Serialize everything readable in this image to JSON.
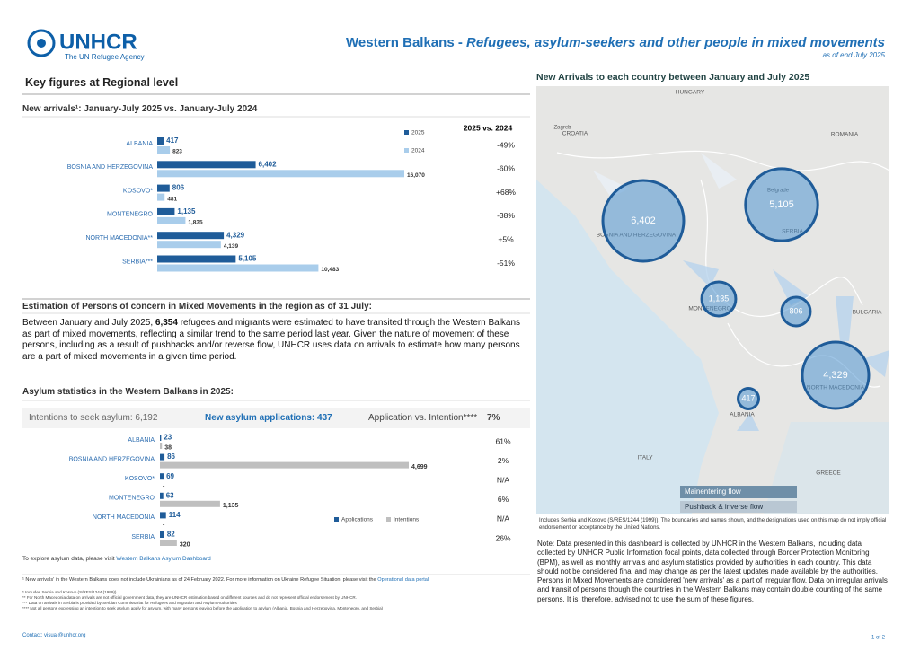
{
  "header": {
    "logo": "UNHCR",
    "tagline": "The UN Refugee Agency",
    "title_main": "Western Balkans - ",
    "title_sub": "Refugees, asylum-seekers and other people in mixed movements",
    "date": "as of end July 2025"
  },
  "key_figures": {
    "title": "Key figures at Regional level"
  },
  "chart_data": [
    {
      "type": "bar",
      "orientation": "horizontal",
      "title": "New arrivals¹: January-July 2025 vs. January-July 2024",
      "categories": [
        "ALBANIA",
        "BOSNIA AND HERZEGOVINA",
        "KOSOVO*",
        "MONTENEGRO",
        "NORTH MACEDONIA**",
        "SERBIA***"
      ],
      "series": [
        {
          "name": "2025",
          "color": "#1f5c99",
          "values": [
            417,
            6402,
            806,
            1135,
            4329,
            5105
          ],
          "value_labels": [
            "417",
            "6,402",
            "806",
            "1,135",
            "4,329",
            "5,105"
          ]
        },
        {
          "name": "2024",
          "color": "#a9cdeb",
          "values": [
            823,
            16070,
            481,
            1835,
            4139,
            10483
          ],
          "value_labels": [
            "823",
            "16,070",
            "481",
            "1,835",
            "4,139",
            "10,483"
          ]
        }
      ],
      "comparison_title": "2025 vs. 2024",
      "comparison_labels": [
        "-49%",
        "-60%",
        "+68%",
        "-38%",
        "+5%",
        "-51%"
      ]
    },
    {
      "type": "bar",
      "orientation": "horizontal",
      "title": "Asylum statistics in the Western Balkans in 2025:",
      "categories": [
        "ALBANIA",
        "BOSNIA AND HERZEGOVINA",
        "KOSOVO*",
        "MONTENEGRO",
        "NORTH MACEDONIA",
        "SERBIA"
      ],
      "series": [
        {
          "name": "Applications",
          "color": "#1f5c99",
          "values": [
            23,
            86,
            69,
            63,
            114,
            82
          ]
        },
        {
          "name": "Intentions",
          "color": "#bfbfbf",
          "values": [
            38,
            4699,
            null,
            1135,
            null,
            320
          ],
          "value_labels": [
            "38",
            "4,699",
            "-",
            "1,135",
            "-",
            "320"
          ]
        }
      ],
      "comparison_labels": [
        "61%",
        "2%",
        "N/A",
        "6%",
        "N/A",
        "26%"
      ]
    }
  ],
  "mixed": {
    "title": "Estimation of Persons of concern in Mixed Movements in the region as of 31 July:",
    "before": "Between January and July 2025, ",
    "highlight": "6,354",
    "after": " refugees and migrants were estimated to have transited through the Western Balkans as part of mixed movements, reflecting a similar trend to the same period last year. Given the nature of movement of these persons, including as a result of pushbacks and/or reverse flow, UNHCR uses data on arrivals to estimate how many persons are a part of mixed movements in a given time period."
  },
  "asylum": {
    "intentions_label": "Intentions to seek asylum:",
    "intentions_value": "6,192",
    "applications_label": "New asylum applications:",
    "applications_value": "437",
    "ratio_label": "Application vs. Intention****",
    "ratio_value": "7%",
    "link_intro": "To explore asylum data, please visit",
    "link": "Western Balkans Asylum Dashboard"
  },
  "footnotes": {
    "note1": "¹ New arrivals' in the Western Balkans does not include Ukrainians as of 24 February 2022. For more information on Ukraine Refugee Situation, please visit the",
    "note1_link": "Operational data portal",
    "note2": "* Includes Serbia and Kosovo (S/RES/1244 (1999))",
    "note3": "** For North Macedonia data on arrivals are not official government data, they are UNHCR estimation based on different sources and do not represent official endorsement by UNHCR.",
    "note4": "*** Data on arrivals in Serbia is provided by Serbian Commissariat for Refugees and Migration and Asylum Authorities",
    "note5": "**** Not all persons expressing an intention to seek asylum apply for asylum, with many persons leaving before the application to asylum (Albania, Bosnia and Herzegovina, Montenegro, and Serbia)"
  },
  "map": {
    "title": "New Arrivals to each country between January and July 2025",
    "values": [
      6402,
      5105,
      1135,
      806,
      4329,
      417
    ],
    "value_labels": [
      "6,402",
      "5,105",
      "1,135",
      "806",
      "4,329",
      "417"
    ],
    "places": [
      "HUNGARY",
      "CROATIA",
      "ROMANIA",
      "BOSNIA AND HERZEGOVINA",
      "SERBIA",
      "MONTENEGRO",
      "BULGARIA",
      "NORTH MACEDONIA",
      "ALBANIA",
      "ITALY",
      "GREECE",
      "Belgrade",
      "Zagreb"
    ],
    "legend_main": "Mainentering flow",
    "legend_pushback": "Pushback & inverse flow",
    "caption": "Includes Serbia and Kosovo (S/RES/1244 (1999)). The boundaries and names shown, and the designations used on this map do not imply official endorsement or acceptance by the United Nations."
  },
  "note": "Note: Data presented in this dashboard is collected by UNHCR in the Western Balkans, including data collected by UNHCR Public Information focal points, data collected through Border Protection Monitoring (BPM), as well as monthly arrivals and asylum statistics provided by authorities in each country. This data should not be considered final and may change as per the latest updates made available by the authorities. Persons in Mixed Movements are considered 'new arrivals' as a part of irregular flow. Data on irregular arrivals and transit of persons though the countries in the Western Balkans may contain double counting of the same persons. It is, therefore, advised not to use the sum of these figures.",
  "footer": {
    "contact": "Contact: visual@unhcr.org",
    "page": "1 of 2"
  }
}
